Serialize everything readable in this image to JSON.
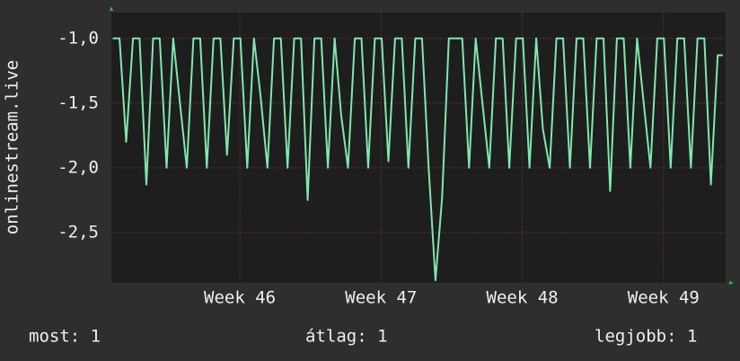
{
  "chart_data": {
    "type": "line",
    "ylabel": "onlinestream.live",
    "xlim": [
      45.09,
      49.44
    ],
    "xticks": [
      {
        "value": 46,
        "label": "Week 46"
      },
      {
        "value": 47,
        "label": "Week 47"
      },
      {
        "value": 48,
        "label": "Week 48"
      },
      {
        "value": 49,
        "label": "Week 49"
      }
    ],
    "ylim": [
      -2.89,
      -0.8
    ],
    "yticks": [
      {
        "value": -1,
        "label": "-1,0"
      },
      {
        "value": -1.5,
        "label": "-1,5"
      },
      {
        "value": -2,
        "label": "-2,0"
      },
      {
        "value": -2.5,
        "label": "-2,5"
      }
    ],
    "grid": true,
    "x": [
      45.1,
      45.148,
      45.195,
      45.243,
      45.29,
      45.338,
      45.386,
      45.433,
      45.481,
      45.528,
      45.576,
      45.624,
      45.671,
      45.719,
      45.766,
      45.814,
      45.862,
      45.909,
      45.957,
      46.004,
      46.052,
      46.1,
      46.147,
      46.195,
      46.242,
      46.29,
      46.338,
      46.385,
      46.433,
      46.48,
      46.528,
      46.576,
      46.623,
      46.671,
      46.718,
      46.766,
      46.814,
      46.861,
      46.909,
      46.956,
      47.004,
      47.052,
      47.099,
      47.147,
      47.194,
      47.242,
      47.29,
      47.337,
      47.385,
      47.432,
      47.48,
      47.528,
      47.575,
      47.623,
      47.67,
      47.718,
      47.766,
      47.813,
      47.861,
      47.908,
      47.956,
      48.004,
      48.051,
      48.099,
      48.146,
      48.194,
      48.242,
      48.289,
      48.337,
      48.384,
      48.432,
      48.48,
      48.527,
      48.575,
      48.622,
      48.67,
      48.718,
      48.765,
      48.813,
      48.86,
      48.908,
      48.956,
      49.003,
      49.051,
      49.098,
      49.146,
      49.194,
      49.241,
      49.289,
      49.336,
      49.384,
      49.42
    ],
    "series": [
      {
        "color": "#7fe8ac",
        "values": [
          -1,
          -1,
          -1.8,
          -1,
          -1,
          -2.13,
          -1,
          -1,
          -2,
          -1,
          -1.5,
          -2,
          -1,
          -1,
          -2,
          -1,
          -1,
          -1.9,
          -1,
          -1,
          -2,
          -1,
          -1.45,
          -2,
          -1,
          -1,
          -2,
          -1,
          -1,
          -2.25,
          -1,
          -1,
          -2,
          -1,
          -1.6,
          -2,
          -1,
          -1,
          -2,
          -1,
          -1,
          -1.95,
          -1,
          -1,
          -2,
          -1,
          -1,
          -2,
          -2.87,
          -2.23,
          -1,
          -1,
          -1,
          -2,
          -1,
          -1.5,
          -2,
          -1,
          -1,
          -2,
          -1,
          -1,
          -2,
          -1,
          -1.7,
          -2,
          -1,
          -1,
          -2,
          -1,
          -1,
          -2,
          -1,
          -1,
          -2.18,
          -1,
          -1,
          -2,
          -1,
          -1.5,
          -2,
          -1,
          -1,
          -2,
          -1,
          -1,
          -2,
          -1,
          -1,
          -2.13,
          -1.13,
          -1.13
        ]
      }
    ],
    "legend_items": [
      "most: 1",
      "átlag: 1",
      "legjobb: 1"
    ]
  }
}
